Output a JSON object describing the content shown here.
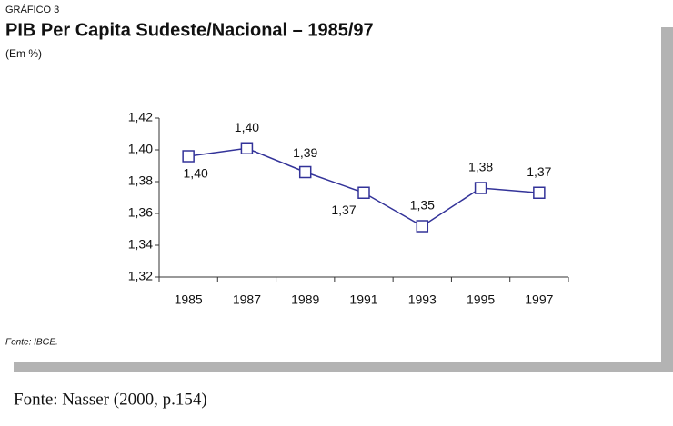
{
  "chart_data": {
    "type": "line",
    "label": "GRÁFICO 3",
    "title": "PIB Per Capita Sudeste/Nacional – 1985/97",
    "subtitle": "(Em %)",
    "source": "Fonte: IBGE.",
    "caption": "Fonte: Nasser (2000, p.154)",
    "categories": [
      "1985",
      "1987",
      "1989",
      "1991",
      "1993",
      "1995",
      "1997"
    ],
    "series": [
      {
        "name": "PIB per capita",
        "color": "#333399",
        "values": [
          1.396,
          1.401,
          1.386,
          1.373,
          1.352,
          1.376,
          1.373
        ],
        "value_labels": [
          "1,40",
          "1,40",
          "1,39",
          "1,37",
          "1,35",
          "1,38",
          "1,37"
        ]
      }
    ],
    "ylim": [
      1.32,
      1.42
    ],
    "yticks": [
      {
        "value": 1.32,
        "label": "1,32"
      },
      {
        "value": 1.34,
        "label": "1,34"
      },
      {
        "value": 1.36,
        "label": "1,36"
      },
      {
        "value": 1.38,
        "label": "1,38"
      },
      {
        "value": 1.4,
        "label": "1,40"
      },
      {
        "value": 1.42,
        "label": "1,42"
      }
    ]
  }
}
